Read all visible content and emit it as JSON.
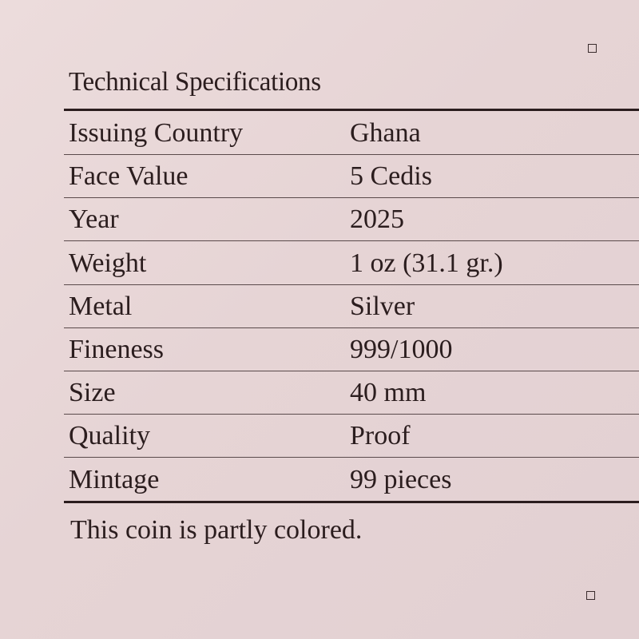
{
  "title": "Technical Specifications",
  "rows": [
    {
      "label": "Issuing Country",
      "value": "Ghana"
    },
    {
      "label": "Face Value",
      "value": "5 Cedis"
    },
    {
      "label": "Year",
      "value": "2025"
    },
    {
      "label": "Weight",
      "value": "1 oz (31.1 gr.)"
    },
    {
      "label": "Metal",
      "value": "Silver"
    },
    {
      "label": "Fineness",
      "value": "999/1000"
    },
    {
      "label": "Size",
      "value": "40 mm"
    },
    {
      "label": "Quality",
      "value": "Proof"
    },
    {
      "label": "Mintage",
      "value": "99 pieces"
    }
  ],
  "note": "This coin is partly colored."
}
